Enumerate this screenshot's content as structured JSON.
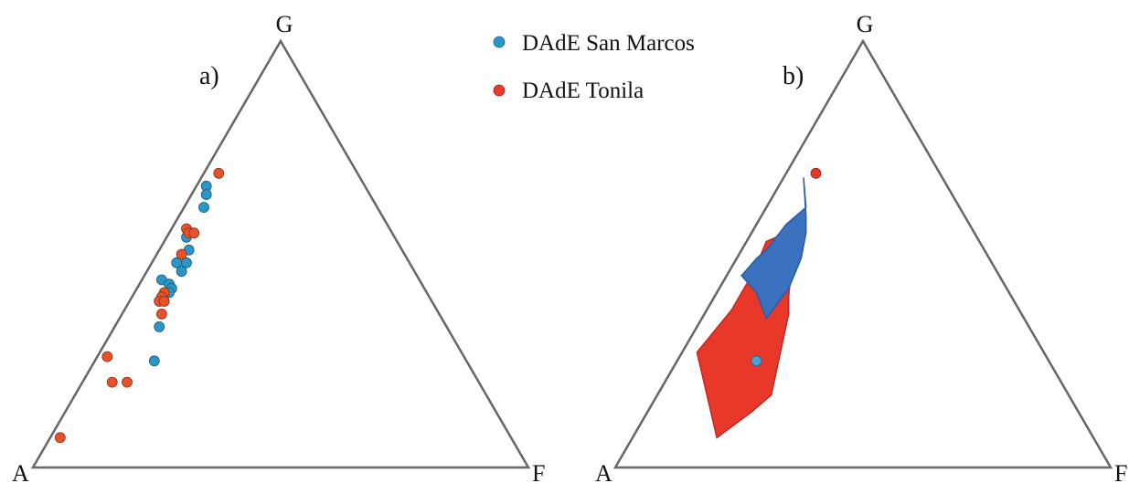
{
  "chart_data": [
    {
      "type": "scatter",
      "panel_label": "a)",
      "vertex_labels": {
        "top": "G",
        "left": "A",
        "right": "F"
      },
      "series": [
        {
          "name": "DAdE San Marcos",
          "color": "#2a96c8",
          "points": [
            {
              "G": 0.66,
              "A": 0.32,
              "F": 0.02
            },
            {
              "G": 0.64,
              "A": 0.33,
              "F": 0.03
            },
            {
              "G": 0.61,
              "A": 0.35,
              "F": 0.04
            },
            {
              "G": 0.54,
              "A": 0.42,
              "F": 0.04
            },
            {
              "G": 0.51,
              "A": 0.43,
              "F": 0.06
            },
            {
              "G": 0.48,
              "A": 0.45,
              "F": 0.07
            },
            {
              "G": 0.48,
              "A": 0.47,
              "F": 0.05
            },
            {
              "G": 0.46,
              "A": 0.47,
              "F": 0.07
            },
            {
              "G": 0.44,
              "A": 0.52,
              "F": 0.04
            },
            {
              "G": 0.43,
              "A": 0.51,
              "F": 0.06
            },
            {
              "G": 0.42,
              "A": 0.51,
              "F": 0.07
            },
            {
              "G": 0.41,
              "A": 0.52,
              "F": 0.07
            },
            {
              "G": 0.39,
              "A": 0.55,
              "F": 0.06
            },
            {
              "G": 0.39,
              "A": 0.54,
              "F": 0.07
            },
            {
              "G": 0.33,
              "A": 0.58,
              "F": 0.09
            },
            {
              "G": 0.25,
              "A": 0.63,
              "F": 0.12
            }
          ]
        },
        {
          "name": "DAdE Tonila",
          "color": "#e8512a",
          "points": [
            {
              "G": 0.69,
              "A": 0.28,
              "F": 0.03
            },
            {
              "G": 0.56,
              "A": 0.41,
              "F": 0.03
            },
            {
              "G": 0.55,
              "A": 0.41,
              "F": 0.04
            },
            {
              "G": 0.55,
              "A": 0.4,
              "F": 0.05
            },
            {
              "G": 0.5,
              "A": 0.45,
              "F": 0.05
            },
            {
              "G": 0.41,
              "A": 0.53,
              "F": 0.06
            },
            {
              "G": 0.4,
              "A": 0.54,
              "F": 0.06
            },
            {
              "G": 0.39,
              "A": 0.55,
              "F": 0.06
            },
            {
              "G": 0.39,
              "A": 0.54,
              "F": 0.07
            },
            {
              "G": 0.36,
              "A": 0.56,
              "F": 0.08
            },
            {
              "G": 0.26,
              "A": 0.72,
              "F": 0.02
            },
            {
              "G": 0.2,
              "A": 0.74,
              "F": 0.06
            },
            {
              "G": 0.2,
              "A": 0.71,
              "F": 0.09
            },
            {
              "G": 0.07,
              "A": 0.91,
              "F": 0.02
            }
          ]
        }
      ]
    },
    {
      "type": "scatter",
      "panel_label": "b)",
      "vertex_labels": {
        "top": "G",
        "left": "A",
        "right": "F"
      },
      "fields": [
        {
          "name": "DAdE Tonila",
          "color": "#e8382a",
          "outline": "#c02820",
          "vertices": [
            {
              "G": 0.55,
              "A": 0.38,
              "F": 0.07
            },
            {
              "G": 0.52,
              "A": 0.38,
              "F": 0.1
            },
            {
              "G": 0.4,
              "A": 0.45,
              "F": 0.15
            },
            {
              "G": 0.36,
              "A": 0.47,
              "F": 0.17
            },
            {
              "G": 0.17,
              "A": 0.6,
              "F": 0.23
            },
            {
              "G": 0.13,
              "A": 0.66,
              "F": 0.21
            },
            {
              "G": 0.07,
              "A": 0.76,
              "F": 0.17
            },
            {
              "G": 0.17,
              "A": 0.73,
              "F": 0.1
            },
            {
              "G": 0.27,
              "A": 0.7,
              "F": 0.03
            },
            {
              "G": 0.37,
              "A": 0.58,
              "F": 0.05
            },
            {
              "G": 0.41,
              "A": 0.54,
              "F": 0.05
            },
            {
              "G": 0.46,
              "A": 0.49,
              "F": 0.05
            },
            {
              "G": 0.53,
              "A": 0.43,
              "F": 0.04
            }
          ]
        },
        {
          "name": "DAdE San Marcos",
          "color": "#3a72c0",
          "outline": "#2a5aa0",
          "vertices": [
            {
              "G": 0.68,
              "A": 0.28,
              "F": 0.04
            },
            {
              "G": 0.59,
              "A": 0.32,
              "F": 0.09
            },
            {
              "G": 0.55,
              "A": 0.34,
              "F": 0.11
            },
            {
              "G": 0.49,
              "A": 0.38,
              "F": 0.13
            },
            {
              "G": 0.42,
              "A": 0.44,
              "F": 0.14
            },
            {
              "G": 0.35,
              "A": 0.52,
              "F": 0.13
            },
            {
              "G": 0.41,
              "A": 0.51,
              "F": 0.08
            },
            {
              "G": 0.45,
              "A": 0.52,
              "F": 0.03
            },
            {
              "G": 0.49,
              "A": 0.47,
              "F": 0.04
            },
            {
              "G": 0.51,
              "A": 0.44,
              "F": 0.05
            },
            {
              "G": 0.57,
              "A": 0.37,
              "F": 0.06
            },
            {
              "G": 0.61,
              "A": 0.31,
              "F": 0.08
            }
          ]
        }
      ],
      "series": [
        {
          "name": "DAdE Tonila",
          "color": "#e8382a",
          "points": [
            {
              "G": 0.69,
              "A": 0.25,
              "F": 0.06
            }
          ]
        },
        {
          "name": "DAdE San Marcos",
          "color": "#4aa0d8",
          "points": [
            {
              "G": 0.25,
              "A": 0.59,
              "F": 0.16
            }
          ]
        }
      ]
    }
  ],
  "legend": {
    "placement": "top-center",
    "items": [
      {
        "label": "DAdE San Marcos",
        "color": "#2a96c8"
      },
      {
        "label": "DAdE Tonila",
        "color": "#e8382a"
      }
    ]
  }
}
